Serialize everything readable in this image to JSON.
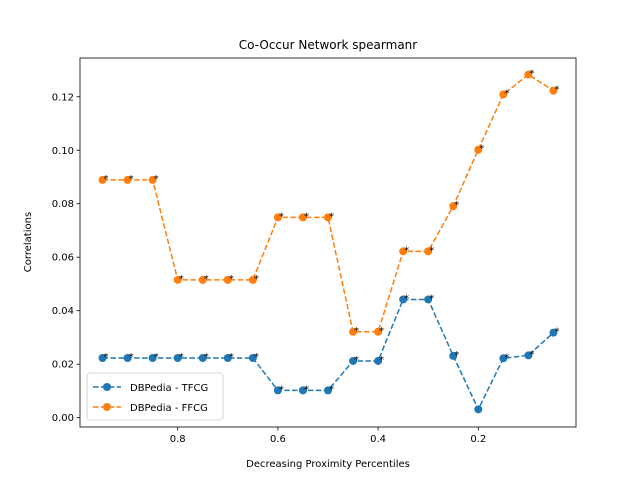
{
  "chart_data": {
    "type": "line",
    "title": "Co-Occur Network spearmanr",
    "xlabel": "Decreasing Proximity Percentiles",
    "ylabel": "Correlations",
    "x": [
      0.95,
      0.9,
      0.85,
      0.8,
      0.75,
      0.7,
      0.65,
      0.6,
      0.55,
      0.5,
      0.45,
      0.4,
      0.35,
      0.3,
      0.25,
      0.2,
      0.15,
      0.1,
      0.05
    ],
    "xlim": [
      0.995,
      0.005
    ],
    "ylim": [
      -0.0035,
      0.1345
    ],
    "xticks": [
      0.8,
      0.6,
      0.4,
      0.2
    ],
    "xtick_labels": [
      "0.8",
      "0.6",
      "0.4",
      "0.2"
    ],
    "yticks": [
      0.0,
      0.02,
      0.04,
      0.06,
      0.08,
      0.1,
      0.12
    ],
    "ytick_labels": [
      "0.00",
      "0.02",
      "0.04",
      "0.06",
      "0.08",
      "0.10",
      "0.12"
    ],
    "grid": false,
    "legend_position": "lower-left",
    "annotation_marker": "*",
    "series": [
      {
        "name": "DBPedia - TFCG",
        "color": "#1f77b4",
        "values": [
          0.0223,
          0.0223,
          0.0223,
          0.0223,
          0.0223,
          0.0223,
          0.0223,
          0.0102,
          0.0102,
          0.0102,
          0.0212,
          0.0212,
          0.0442,
          0.0442,
          0.0231,
          0.0031,
          0.0222,
          0.0233,
          0.0318
        ],
        "annotated": [
          true,
          true,
          true,
          true,
          true,
          true,
          true,
          true,
          true,
          true,
          true,
          true,
          true,
          true,
          true,
          false,
          true,
          true,
          true
        ]
      },
      {
        "name": "DBPedia - FFCG",
        "color": "#ff7f0e",
        "values": [
          0.0889,
          0.0889,
          0.0889,
          0.0515,
          0.0515,
          0.0515,
          0.0515,
          0.0749,
          0.0749,
          0.0749,
          0.0321,
          0.0321,
          0.0622,
          0.0622,
          0.0791,
          0.1002,
          0.1209,
          0.1283,
          0.1223
        ],
        "annotated": [
          true,
          true,
          true,
          true,
          true,
          true,
          true,
          true,
          true,
          true,
          true,
          true,
          true,
          true,
          true,
          true,
          true,
          true,
          true
        ]
      }
    ]
  }
}
